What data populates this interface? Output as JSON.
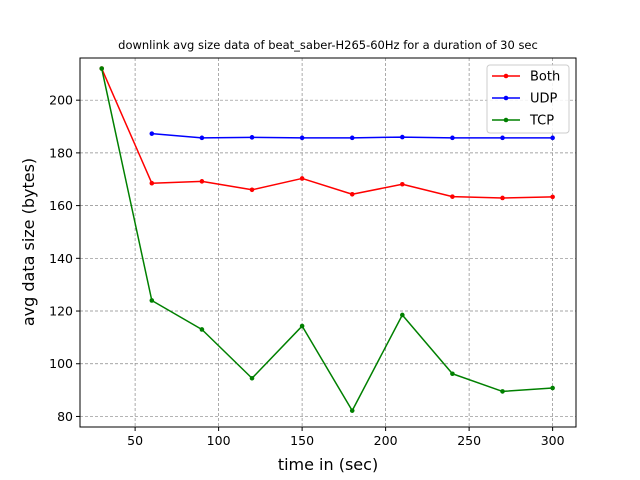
{
  "chart_data": {
    "type": "line",
    "title": "downlink avg size data of beat_saber-H265-60Hz for a duration of 30 sec",
    "xlabel": "time in (sec)",
    "ylabel": "avg data size (bytes)",
    "xlim": [
      17,
      314
    ],
    "ylim": [
      76,
      216
    ],
    "xticks": [
      50,
      100,
      150,
      200,
      250,
      300
    ],
    "yticks": [
      80,
      100,
      120,
      140,
      160,
      180,
      200
    ],
    "grid": true,
    "grid_style": "dashed",
    "legend_position": "top-right",
    "series": [
      {
        "name": "Both",
        "color": "#ff0000",
        "x": [
          30,
          60,
          90,
          120,
          150,
          180,
          210,
          240,
          270,
          300
        ],
        "y": [
          212,
          168.5,
          169.2,
          166,
          170.3,
          164.3,
          168.1,
          163.4,
          162.9,
          163.3
        ]
      },
      {
        "name": "UDP",
        "color": "#0000ff",
        "x": [
          60,
          90,
          120,
          150,
          180,
          210,
          240,
          270,
          300
        ],
        "y": [
          187.3,
          185.7,
          185.9,
          185.7,
          185.7,
          186,
          185.7,
          185.7,
          185.7
        ]
      },
      {
        "name": "TCP",
        "color": "#008000",
        "x": [
          30,
          60,
          90,
          120,
          150,
          180,
          210,
          240,
          270,
          300
        ],
        "y": [
          212,
          124,
          113,
          94.5,
          114.3,
          82.2,
          118.5,
          96.2,
          89.5,
          90.8
        ]
      }
    ]
  }
}
